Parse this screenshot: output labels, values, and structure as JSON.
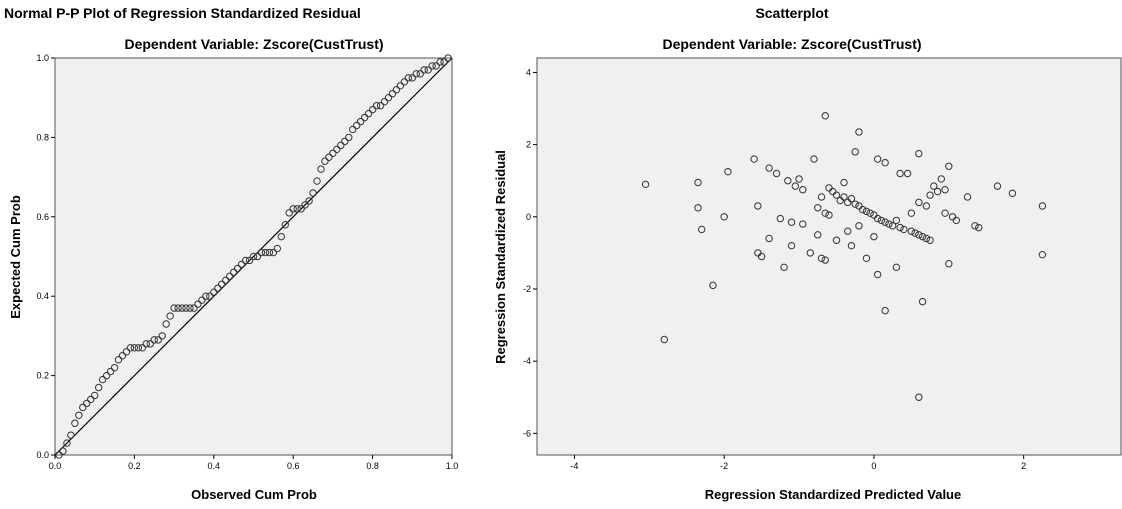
{
  "chart_data": [
    {
      "type": "scatter",
      "title": "Normal P-P Plot of Regression Standardized Residual",
      "subtitle": "Dependent Variable: Zscore(CustTrust)",
      "xlabel": "Observed Cum Prob",
      "ylabel": "Expected Cum Prob",
      "xlim": [
        0,
        1
      ],
      "ylim": [
        0,
        1
      ],
      "xticks": [
        "0.0",
        "0.2",
        "0.4",
        "0.6",
        "0.8",
        "1.0"
      ],
      "yticks": [
        "0.0",
        "0.2",
        "0.4",
        "0.6",
        "0.8",
        "1.0"
      ],
      "reference_line": [
        [
          0,
          0
        ],
        [
          1,
          1
        ]
      ],
      "grid": false,
      "background": "#f0f0f0",
      "marker_color": "#333333",
      "x": [
        0.01,
        0.02,
        0.03,
        0.04,
        0.05,
        0.06,
        0.07,
        0.08,
        0.09,
        0.1,
        0.11,
        0.12,
        0.13,
        0.14,
        0.15,
        0.16,
        0.17,
        0.18,
        0.19,
        0.2,
        0.21,
        0.22,
        0.23,
        0.24,
        0.25,
        0.26,
        0.27,
        0.28,
        0.29,
        0.3,
        0.31,
        0.32,
        0.33,
        0.34,
        0.35,
        0.36,
        0.37,
        0.38,
        0.39,
        0.4,
        0.41,
        0.42,
        0.43,
        0.44,
        0.45,
        0.46,
        0.47,
        0.48,
        0.49,
        0.5,
        0.51,
        0.52,
        0.53,
        0.54,
        0.55,
        0.56,
        0.57,
        0.58,
        0.59,
        0.6,
        0.61,
        0.62,
        0.63,
        0.64,
        0.65,
        0.66,
        0.67,
        0.68,
        0.69,
        0.7,
        0.71,
        0.72,
        0.73,
        0.74,
        0.75,
        0.76,
        0.77,
        0.78,
        0.79,
        0.8,
        0.81,
        0.82,
        0.83,
        0.84,
        0.85,
        0.86,
        0.87,
        0.88,
        0.89,
        0.9,
        0.91,
        0.92,
        0.93,
        0.94,
        0.95,
        0.96,
        0.97,
        0.98,
        0.99
      ],
      "y": [
        0.0,
        0.01,
        0.03,
        0.05,
        0.08,
        0.1,
        0.12,
        0.13,
        0.14,
        0.15,
        0.17,
        0.19,
        0.2,
        0.21,
        0.22,
        0.24,
        0.25,
        0.26,
        0.27,
        0.27,
        0.27,
        0.27,
        0.28,
        0.28,
        0.29,
        0.29,
        0.3,
        0.33,
        0.35,
        0.37,
        0.37,
        0.37,
        0.37,
        0.37,
        0.37,
        0.38,
        0.39,
        0.4,
        0.4,
        0.41,
        0.42,
        0.43,
        0.44,
        0.45,
        0.46,
        0.47,
        0.48,
        0.49,
        0.49,
        0.5,
        0.5,
        0.51,
        0.51,
        0.51,
        0.51,
        0.52,
        0.55,
        0.58,
        0.61,
        0.62,
        0.62,
        0.62,
        0.63,
        0.64,
        0.66,
        0.69,
        0.72,
        0.74,
        0.75,
        0.76,
        0.77,
        0.78,
        0.79,
        0.8,
        0.82,
        0.83,
        0.84,
        0.85,
        0.86,
        0.87,
        0.88,
        0.88,
        0.89,
        0.9,
        0.91,
        0.92,
        0.93,
        0.94,
        0.95,
        0.95,
        0.96,
        0.96,
        0.97,
        0.97,
        0.98,
        0.98,
        0.99,
        0.99,
        1.0
      ]
    },
    {
      "type": "scatter",
      "title": "Scatterplot",
      "subtitle": "Dependent Variable: Zscore(CustTrust)",
      "xlabel": "Regression Standardized Predicted Value",
      "ylabel": "Regression Standardized Residual",
      "xlim": [
        -4.5,
        3.3
      ],
      "ylim": [
        -6.6,
        4.4
      ],
      "xticks": [
        -4,
        -2,
        0,
        2
      ],
      "yticks": [
        -6,
        -4,
        -2,
        0,
        2,
        4
      ],
      "grid": false,
      "background": "#f0f0f0",
      "marker_color": "#333333",
      "x": [
        -3.05,
        -2.8,
        -2.35,
        -2.3,
        -2.35,
        -2.15,
        -2.0,
        -1.95,
        -1.6,
        -1.55,
        -1.55,
        -1.5,
        -1.4,
        -1.4,
        -1.3,
        -1.25,
        -1.2,
        -1.15,
        -1.1,
        -1.05,
        -1.0,
        -0.95,
        -0.85,
        -0.8,
        -0.75,
        -0.7,
        -0.7,
        -0.65,
        -0.65,
        -0.6,
        -0.6,
        -0.55,
        -0.5,
        -0.5,
        -0.45,
        -0.4,
        -0.35,
        -0.35,
        -0.3,
        -0.3,
        -0.25,
        -0.2,
        -0.2,
        -0.15,
        -0.1,
        -0.1,
        -0.05,
        0.0,
        0.0,
        0.05,
        0.05,
        0.1,
        0.15,
        0.15,
        0.2,
        0.25,
        0.3,
        0.35,
        0.35,
        0.4,
        0.45,
        0.5,
        0.55,
        0.6,
        0.6,
        0.6,
        0.65,
        0.65,
        0.7,
        0.7,
        0.75,
        0.8,
        0.85,
        0.9,
        0.95,
        1.0,
        1.0,
        1.05,
        1.1,
        1.25,
        1.35,
        1.4,
        1.65,
        1.85,
        2.25,
        2.25,
        -0.65,
        -0.25,
        0.6,
        0.15,
        -0.2,
        0.3,
        -1.1,
        -0.75,
        -0.95,
        0.05,
        -0.4,
        0.5,
        0.75,
        0.95
      ],
      "y": [
        0.9,
        -3.4,
        0.95,
        -0.35,
        0.25,
        -1.9,
        0.0,
        1.25,
        1.6,
        -1.0,
        0.3,
        -1.1,
        1.35,
        -0.6,
        1.2,
        -0.05,
        -1.4,
        1.0,
        -0.8,
        0.85,
        1.05,
        0.75,
        -1.0,
        1.6,
        -0.5,
        0.55,
        -1.15,
        -1.2,
        0.1,
        0.8,
        0.05,
        0.7,
        -0.65,
        0.6,
        0.45,
        0.55,
        0.4,
        -0.4,
        0.5,
        -0.8,
        0.35,
        0.3,
        -0.25,
        0.2,
        0.15,
        -1.15,
        0.1,
        0.05,
        -0.55,
        -0.05,
        -1.6,
        -0.1,
        -0.15,
        -2.6,
        -0.2,
        -0.25,
        -1.4,
        -0.3,
        1.2,
        -0.35,
        1.2,
        -0.4,
        -0.45,
        0.4,
        -0.5,
        -5.0,
        -0.55,
        -2.35,
        0.3,
        -0.6,
        -0.65,
        0.85,
        0.7,
        1.05,
        0.75,
        1.4,
        -1.3,
        0.0,
        -0.1,
        0.55,
        -0.25,
        -0.3,
        0.85,
        0.65,
        0.3,
        -1.05,
        2.8,
        1.8,
        1.75,
        1.5,
        2.35,
        -0.1,
        -0.15,
        0.25,
        -0.2,
        1.6,
        0.95,
        0.1,
        0.6,
        0.1
      ]
    }
  ]
}
